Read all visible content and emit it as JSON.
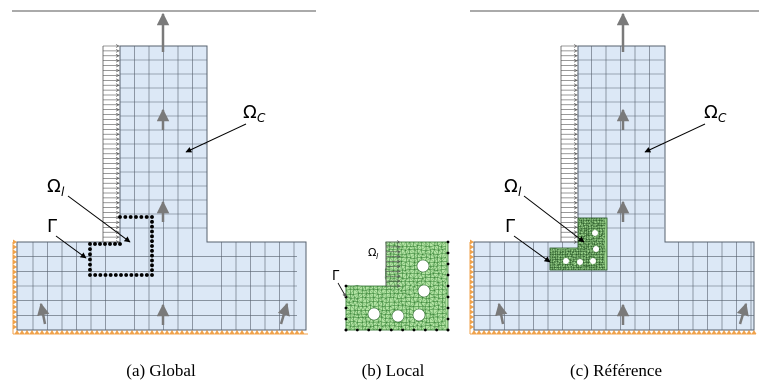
{
  "panels": [
    {
      "id": "a",
      "caption": "(a)  Global",
      "label_omega_c": "Ω",
      "label_omega_c_sub": "C",
      "label_omega_l": "Ω",
      "label_omega_l_sub": "l",
      "label_gamma": "Γ"
    },
    {
      "id": "b",
      "caption": "(b)  Local",
      "label_omega_l": "Ω",
      "label_omega_l_sub": "l",
      "label_gamma": "Γ"
    },
    {
      "id": "c",
      "caption": "(c)  Référence",
      "label_omega_c": "Ω",
      "label_omega_c_sub": "C",
      "label_omega_l": "Ω",
      "label_omega_l_sub": "l",
      "label_gamma": "Γ"
    }
  ],
  "colors": {
    "coarse_fill": "#dce8f6",
    "grid_line": "#56606e",
    "fine_fill": "#b3e4a4",
    "fine_dark": "#2a6a2a",
    "support": "#f0a24a",
    "arrow": "#7a7a7a",
    "interface": "#000000"
  }
}
